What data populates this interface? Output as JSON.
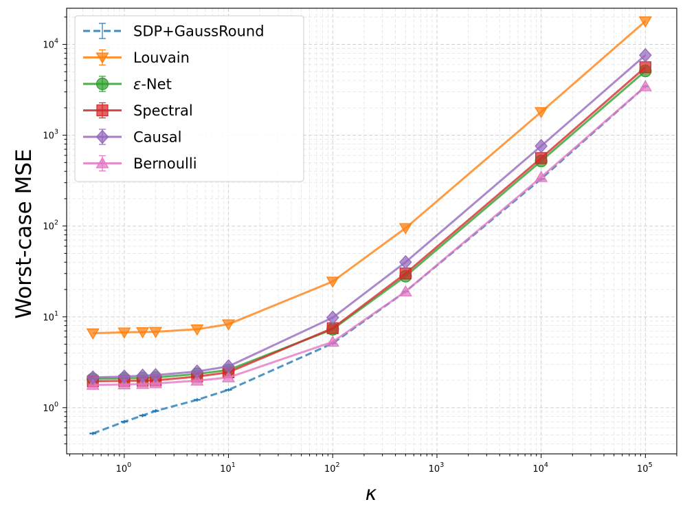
{
  "chart_data": {
    "type": "line",
    "title": "",
    "xlabel": "κ",
    "ylabel": "Worst-case MSE",
    "xscale": "log",
    "yscale": "log",
    "xlim": [
      0.28,
      200000
    ],
    "ylim": [
      0.31,
      25000
    ],
    "grid": true,
    "legend_position": "top-left",
    "x_ticks": [
      {
        "value": 1,
        "base": "10",
        "exp": "0"
      },
      {
        "value": 10,
        "base": "10",
        "exp": "1"
      },
      {
        "value": 100,
        "base": "10",
        "exp": "2"
      },
      {
        "value": 1000,
        "base": "10",
        "exp": "3"
      },
      {
        "value": 10000,
        "base": "10",
        "exp": "4"
      },
      {
        "value": 100000,
        "base": "10",
        "exp": "5"
      }
    ],
    "y_ticks": [
      {
        "value": 1,
        "base": "10",
        "exp": "0"
      },
      {
        "value": 10,
        "base": "10",
        "exp": "1"
      },
      {
        "value": 100,
        "base": "10",
        "exp": "2"
      },
      {
        "value": 1000,
        "base": "10",
        "exp": "3"
      },
      {
        "value": 10000,
        "base": "10",
        "exp": "4"
      }
    ],
    "x": [
      0.5,
      1,
      1.5,
      2,
      5,
      10,
      100,
      500,
      10000,
      100000
    ],
    "series": [
      {
        "name": "SDP+GaussRound",
        "color": "#1f77b4",
        "marker": "errorbar",
        "dashed": true,
        "values": [
          0.52,
          0.7,
          0.82,
          0.92,
          1.22,
          1.57,
          5.1,
          19,
          330,
          3450
        ]
      },
      {
        "name": "Louvain",
        "color": "#ff7f0e",
        "marker": "triangle-down",
        "dashed": false,
        "values": [
          6.6,
          6.75,
          6.8,
          6.85,
          7.3,
          8.3,
          24.5,
          95,
          1800,
          18000
        ]
      },
      {
        "name": "ε-Net",
        "color": "#2ca02c",
        "marker": "circle",
        "dashed": false,
        "values": [
          2.08,
          2.1,
          2.12,
          2.15,
          2.35,
          2.6,
          7.3,
          28,
          520,
          5100
        ]
      },
      {
        "name": "Spectral",
        "color": "#d62728",
        "marker": "square",
        "dashed": false,
        "values": [
          1.95,
          1.97,
          1.98,
          2.0,
          2.2,
          2.45,
          7.5,
          30,
          560,
          5600
        ]
      },
      {
        "name": "Causal",
        "color": "#9467bd",
        "marker": "diamond",
        "dashed": false,
        "values": [
          2.15,
          2.2,
          2.25,
          2.28,
          2.5,
          2.85,
          9.8,
          40,
          760,
          7600
        ]
      },
      {
        "name": "Bernoulli",
        "color": "#e377c2",
        "marker": "triangle-up",
        "dashed": false,
        "values": [
          1.78,
          1.8,
          1.82,
          1.85,
          1.98,
          2.15,
          5.3,
          19,
          345,
          3450
        ]
      }
    ]
  }
}
